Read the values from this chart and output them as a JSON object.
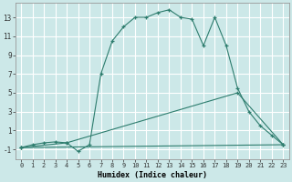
{
  "xlabel": "Humidex (Indice chaleur)",
  "bg_color": "#cce8e8",
  "grid_color": "#ffffff",
  "line_color": "#2e7d6e",
  "xlim": [
    -0.5,
    23.5
  ],
  "ylim": [
    -2.0,
    14.5
  ],
  "xticks": [
    0,
    1,
    2,
    3,
    4,
    5,
    6,
    7,
    8,
    9,
    10,
    11,
    12,
    13,
    14,
    15,
    16,
    17,
    18,
    19,
    20,
    21,
    22,
    23
  ],
  "yticks": [
    -1,
    1,
    3,
    5,
    7,
    9,
    11,
    13
  ],
  "series": [
    [
      [
        0,
        -0.8
      ],
      [
        1,
        -0.5
      ],
      [
        2,
        -0.3
      ],
      [
        3,
        -0.2
      ],
      [
        4,
        -0.3
      ],
      [
        5,
        -1.2
      ],
      [
        6,
        -0.5
      ],
      [
        7,
        7.0
      ],
      [
        8,
        10.5
      ],
      [
        9,
        12.0
      ],
      [
        10,
        13.0
      ],
      [
        11,
        13.0
      ],
      [
        12,
        13.5
      ],
      [
        13,
        13.8
      ],
      [
        14,
        13.0
      ],
      [
        15,
        12.8
      ],
      [
        16,
        10.0
      ],
      [
        17,
        13.0
      ],
      [
        18,
        10.0
      ],
      [
        19,
        5.5
      ],
      [
        20,
        3.0
      ],
      [
        21,
        1.5
      ],
      [
        22,
        0.5
      ],
      [
        23,
        -0.5
      ]
    ],
    [
      [
        0,
        -0.8
      ],
      [
        23,
        -0.5
      ]
    ],
    [
      [
        0,
        -0.8
      ],
      [
        4,
        -0.3
      ],
      [
        19,
        5.0
      ],
      [
        23,
        -0.5
      ]
    ]
  ]
}
